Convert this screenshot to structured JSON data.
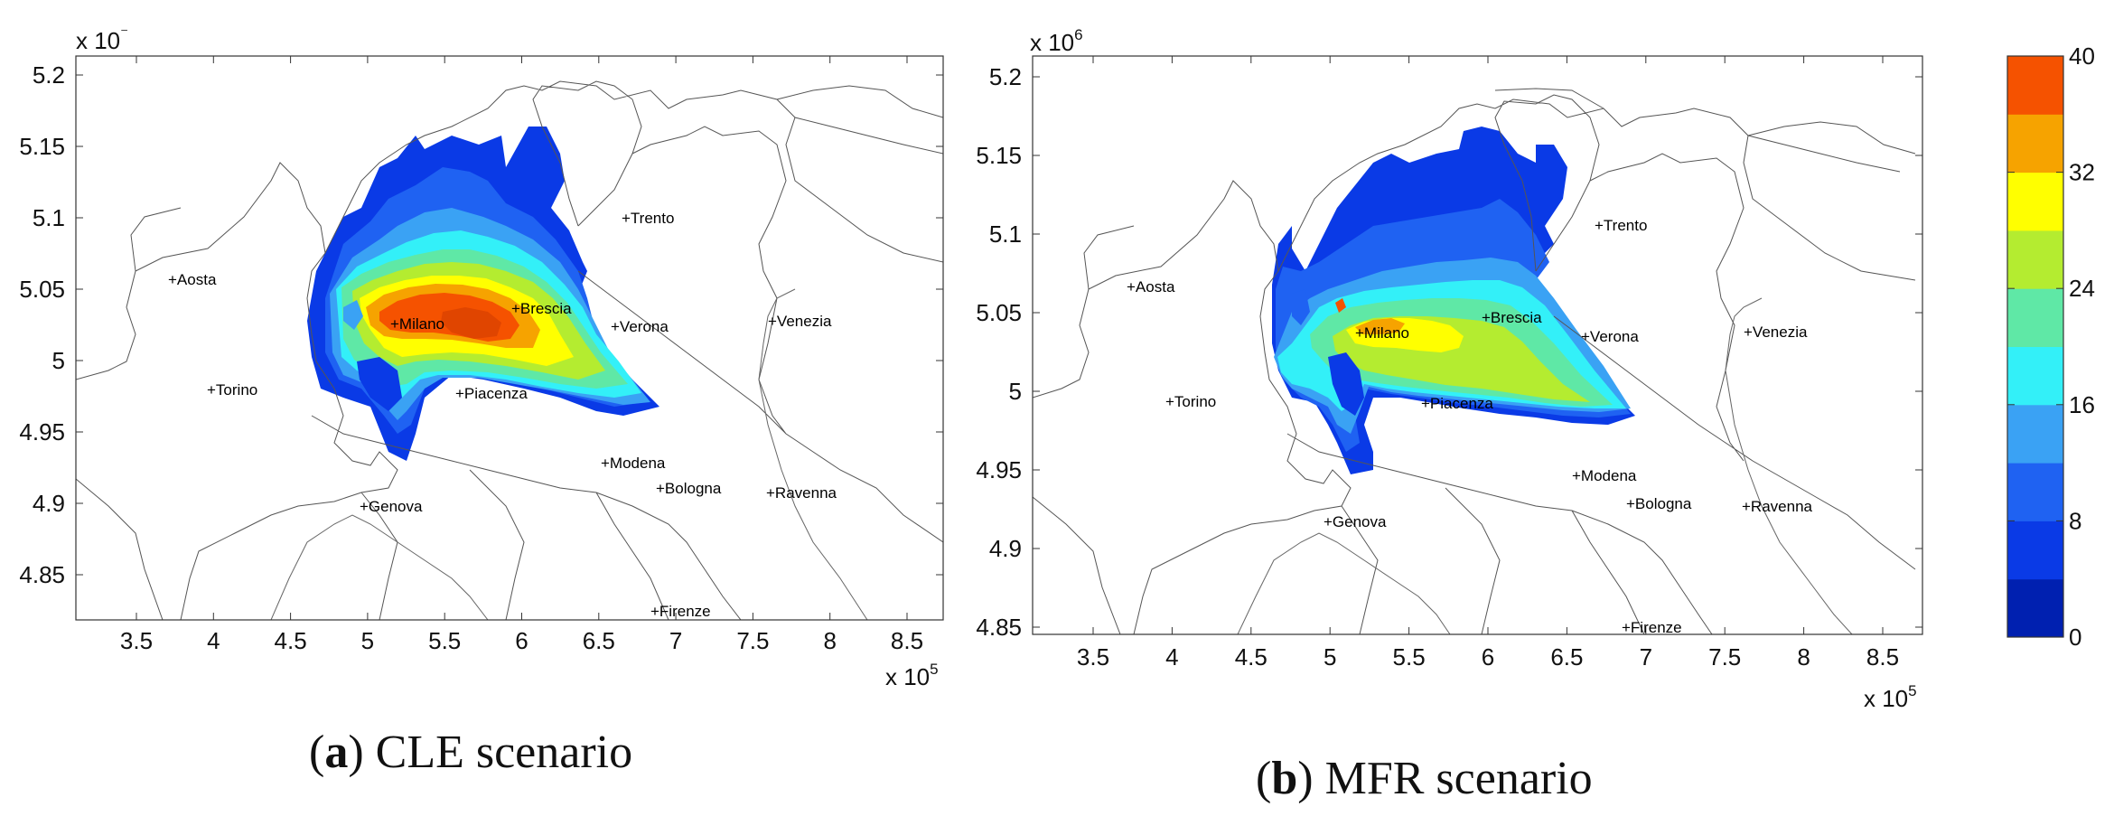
{
  "panels": [
    {
      "caption_letter": "a",
      "caption_text": "CLE scenario",
      "x_exponent_label": "x 10",
      "x_exponent_power": "5",
      "y_exponent_label": "x 10",
      "y_exponent_power": "",
      "x_ticks": [
        "3.5",
        "4",
        "4.5",
        "5",
        "5.5",
        "6",
        "6.5",
        "7",
        "7.5",
        "8",
        "8.5"
      ],
      "y_ticks": [
        "5.2",
        "5.15",
        "5.1",
        "5.05",
        "5",
        "4.95",
        "4.9",
        "4.85"
      ],
      "cities": [
        {
          "name": "+Aosta"
        },
        {
          "name": "+Torino"
        },
        {
          "name": "+Milano"
        },
        {
          "name": "+Brescia"
        },
        {
          "name": "+Trento"
        },
        {
          "name": "+Verona"
        },
        {
          "name": "+Venezia"
        },
        {
          "name": "+Piacenza"
        },
        {
          "name": "+Modena"
        },
        {
          "name": "+Bologna"
        },
        {
          "name": "+Ravenna"
        },
        {
          "name": "+Genova"
        },
        {
          "name": "+Firenze"
        }
      ]
    },
    {
      "caption_letter": "b",
      "caption_text": "MFR scenario",
      "x_exponent_label": "x 10",
      "x_exponent_power": "5",
      "y_exponent_label": "x 10",
      "y_exponent_power": "6",
      "x_ticks": [
        "3.5",
        "4",
        "4.5",
        "5",
        "5.5",
        "6",
        "6.5",
        "7",
        "7.5",
        "8",
        "8.5"
      ],
      "y_ticks": [
        "5.2",
        "5.15",
        "5.1",
        "5.05",
        "5",
        "4.95",
        "4.9",
        "4.85"
      ],
      "cities": [
        {
          "name": "+Aosta"
        },
        {
          "name": "+Torino"
        },
        {
          "name": "+Milano"
        },
        {
          "name": "+Brescia"
        },
        {
          "name": "+Trento"
        },
        {
          "name": "+Verona"
        },
        {
          "name": "+Venezia"
        },
        {
          "name": "+Piacenza"
        },
        {
          "name": "+Modena"
        },
        {
          "name": "+Bologna"
        },
        {
          "name": "+Ravenna"
        },
        {
          "name": "+Genova"
        },
        {
          "name": "+Firenze"
        }
      ]
    }
  ],
  "colorbar": {
    "min": 0,
    "max": 40,
    "tick_labels": [
      "40",
      "32",
      "24",
      "16",
      "8",
      "0"
    ],
    "colors": [
      "#0020b0",
      "#0a3ae6",
      "#1f62f2",
      "#3aa2f4",
      "#33f0f8",
      "#5fe8a6",
      "#b4ec30",
      "#ffff00",
      "#f6a300",
      "#f55200"
    ]
  }
}
